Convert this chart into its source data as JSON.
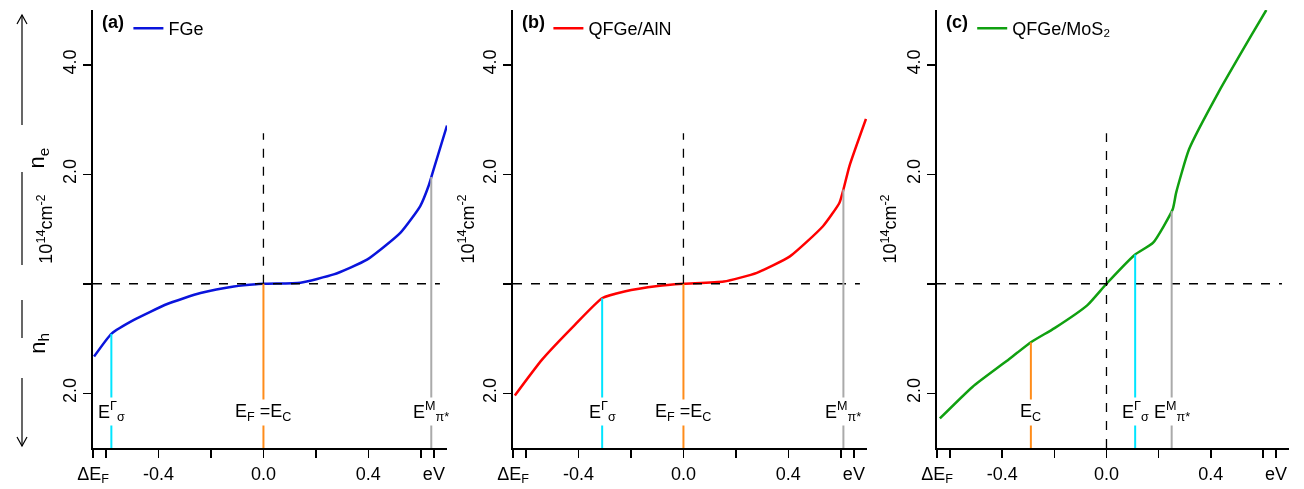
{
  "chart_data": [
    {
      "type": "line",
      "title": "(a)",
      "ylabel": "10$^{14}$cm$^{-2}$",
      "annotations": [
        "n$_{e}$",
        "n$_{h}$"
      ],
      "legend": "top left",
      "grid": false,
      "marker": "none",
      "line_style": "solid",
      "xlim": [
        -0.65,
        0.7
      ],
      "ylim": [
        -3,
        5
      ],
      "xticks": [
        {
          "value": -0.65,
          "label": "ΔE$_{F}$"
        },
        {
          "value": -0.6,
          "label": null
        },
        {
          "value": -0.4,
          "label": "-0.4"
        },
        {
          "value": -0.2,
          "label": null
        },
        {
          "value": 0,
          "label": "0.0"
        },
        {
          "value": 0.2,
          "label": null
        },
        {
          "value": 0.4,
          "label": "0.4"
        },
        {
          "value": 0.6,
          "label": null
        },
        {
          "value": 0.65,
          "label": "eV"
        }
      ],
      "yticks": [
        {
          "value": -2,
          "label": "2.0"
        },
        {
          "value": 0,
          "label": null
        },
        {
          "value": 2,
          "label": "2.0"
        },
        {
          "value": 4,
          "label": "4.0"
        }
      ],
      "ref_lines": [
        {
          "axis": "y",
          "value": 0,
          "color": "#000000",
          "line_style": "dashed"
        },
        {
          "axis": "x",
          "value": 0,
          "color": "#000000",
          "line_style": "dashed"
        },
        {
          "axis": "x",
          "value": -0.58,
          "label": "E$^{Γ}$$_{σ}$",
          "color": "#00e5ff"
        },
        {
          "axis": "x",
          "value": 0,
          "label": "E$_{F}$ =E$_{C}$",
          "color": "#ff8c1a"
        },
        {
          "axis": "x",
          "value": 0.64,
          "label": "E$^{M}$$_{π*}$",
          "color": "#aaaaaa"
        }
      ],
      "x": [
        -0.646,
        -0.579,
        -0.494,
        -0.367,
        -0.24,
        -0.113,
        0,
        0.141,
        0.268,
        0.395,
        0.522,
        0.598,
        0.63,
        0.649,
        0.7
      ],
      "series": [
        {
          "name": "FGe",
          "color": "#0a14dc",
          "values": [
            -1.33,
            -0.91,
            -0.66,
            -0.37,
            -0.17,
            -0.05,
            0,
            0.02,
            0.17,
            0.44,
            0.93,
            1.42,
            1.79,
            2.09,
            2.89
          ]
        }
      ]
    },
    {
      "type": "line",
      "title": "(b)",
      "ylabel": "10$^{14}$cm$^{-2}$",
      "legend": "top left",
      "grid": false,
      "marker": "none",
      "line_style": "solid",
      "xlim": [
        -0.65,
        0.7
      ],
      "ylim": [
        -3,
        5
      ],
      "xticks": [
        {
          "value": -0.65,
          "label": "ΔE$_{F}$"
        },
        {
          "value": -0.6,
          "label": null
        },
        {
          "value": -0.4,
          "label": "-0.4"
        },
        {
          "value": -0.2,
          "label": null
        },
        {
          "value": 0,
          "label": "0.0"
        },
        {
          "value": 0.2,
          "label": null
        },
        {
          "value": 0.4,
          "label": "0.4"
        },
        {
          "value": 0.6,
          "label": null
        },
        {
          "value": 0.65,
          "label": "eV"
        }
      ],
      "yticks": [
        {
          "value": -2,
          "label": "2.0"
        },
        {
          "value": 0,
          "label": null
        },
        {
          "value": 2,
          "label": "2.0"
        },
        {
          "value": 4,
          "label": "4.0"
        }
      ],
      "ref_lines": [
        {
          "axis": "y",
          "value": 0,
          "color": "#000000",
          "line_style": "dashed"
        },
        {
          "axis": "x",
          "value": 0,
          "color": "#000000",
          "line_style": "dashed"
        },
        {
          "axis": "x",
          "value": -0.31,
          "label": "E$^{Γ}$$_{σ}$",
          "color": "#00e5ff"
        },
        {
          "axis": "x",
          "value": 0,
          "label": "E$_{F}$ =E$_{C}$",
          "color": "#ff8c1a"
        },
        {
          "axis": "x",
          "value": 0.61,
          "label": "E$^{M}$$_{π*}$",
          "color": "#aaaaaa"
        }
      ],
      "x": [
        -0.643,
        -0.54,
        -0.414,
        -0.309,
        -0.225,
        -0.098,
        0,
        0.154,
        0.28,
        0.406,
        0.532,
        0.595,
        0.61,
        0.633,
        0.696
      ],
      "series": [
        {
          "name": "QFGe/AlN",
          "color": "#ff0000",
          "values": [
            -2.04,
            -1.39,
            -0.75,
            -0.26,
            -0.14,
            -0.04,
            0,
            0.04,
            0.2,
            0.5,
            1.05,
            1.48,
            1.72,
            2.15,
            3.01
          ]
        }
      ]
    },
    {
      "type": "line",
      "title": "(c)",
      "ylabel": "10$^{14}$cm$^{-2}$",
      "legend": "top left",
      "grid": false,
      "marker": "none",
      "line_style": "solid",
      "xlim": [
        -0.65,
        0.7
      ],
      "ylim": [
        -3,
        5
      ],
      "xticks": [
        {
          "value": -0.65,
          "label": "ΔE$_{F}$"
        },
        {
          "value": -0.6,
          "label": null
        },
        {
          "value": -0.4,
          "label": "-0.4"
        },
        {
          "value": -0.2,
          "label": null
        },
        {
          "value": 0,
          "label": "0.0"
        },
        {
          "value": 0.2,
          "label": null
        },
        {
          "value": 0.4,
          "label": "0.4"
        },
        {
          "value": 0.6,
          "label": null
        },
        {
          "value": 0.65,
          "label": "eV"
        }
      ],
      "yticks": [
        {
          "value": -2,
          "label": "2.0"
        },
        {
          "value": 0,
          "label": null
        },
        {
          "value": 2,
          "label": "2.0"
        },
        {
          "value": 4,
          "label": "4.0"
        }
      ],
      "ref_lines": [
        {
          "axis": "y",
          "value": 0,
          "color": "#000000",
          "line_style": "dashed"
        },
        {
          "axis": "x",
          "value": 0,
          "color": "#000000",
          "line_style": "dashed"
        },
        {
          "axis": "x",
          "value": -0.29,
          "label": "E$_{C}$",
          "color": "#ff8c1a"
        },
        {
          "axis": "x",
          "value": 0.11,
          "label": "E$^{Γ}$$_{σ}$",
          "color": "#00e5ff"
        },
        {
          "axis": "x",
          "value": 0.25,
          "label": "E$^{M}$$_{π*}$",
          "color": "#aaaaaa"
        }
      ],
      "x": [
        -0.639,
        -0.513,
        -0.388,
        -0.287,
        -0.199,
        -0.073,
        0,
        0.109,
        0.179,
        0.254,
        0.267,
        0.317,
        0.43,
        0.556,
        0.613
      ],
      "series": [
        {
          "name": "QFGe/MoS₂",
          "color": "#10a010",
          "values": [
            -2.46,
            -1.88,
            -1.43,
            -1.06,
            -0.81,
            -0.39,
            0,
            0.53,
            0.75,
            1.36,
            1.66,
            2.46,
            3.5,
            4.54,
            5.0
          ]
        }
      ]
    }
  ]
}
